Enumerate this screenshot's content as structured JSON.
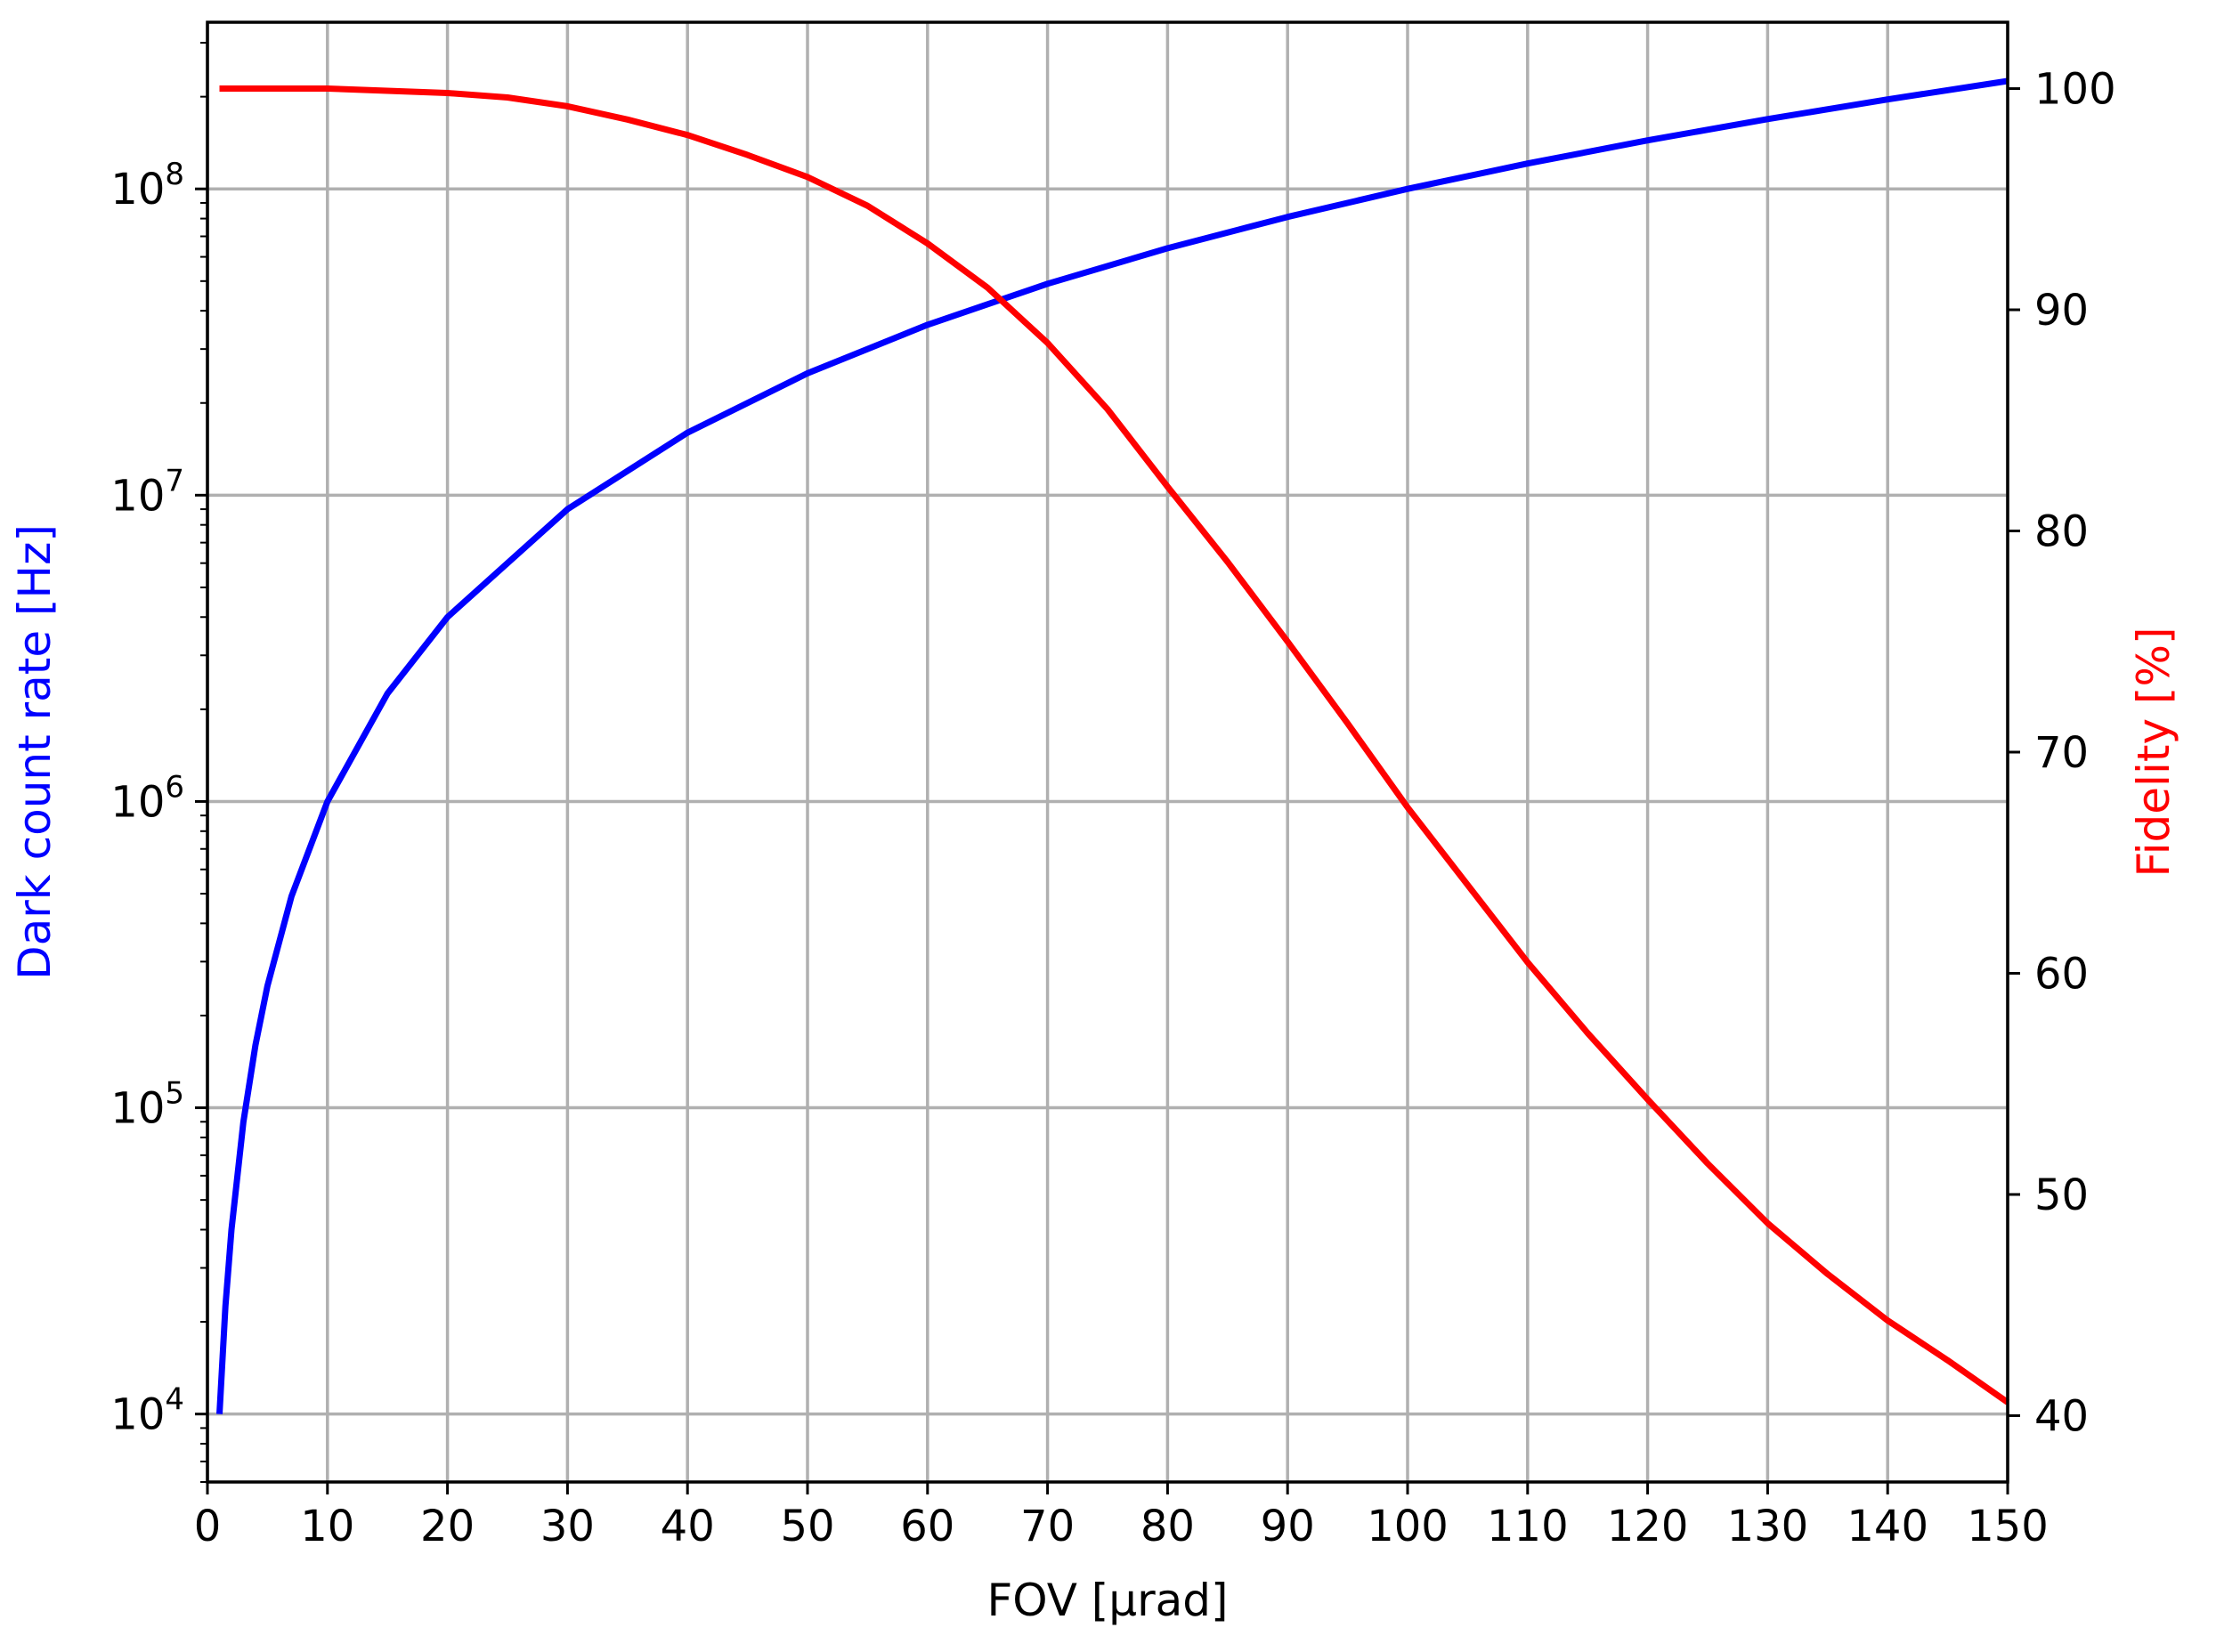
{
  "chart_data": {
    "type": "line",
    "xlabel": "FOV [μrad]",
    "ylabel_left": "Dark count rate [Hz]",
    "ylabel_right": "Fidelity [%]",
    "xlim": [
      0,
      150
    ],
    "ylim_left": [
      6000,
      350000000
    ],
    "yscale_left": "log",
    "ylim_right": [
      37,
      103
    ],
    "grid": true,
    "colors": {
      "left": "#0000ff",
      "right": "#ff0000",
      "grid": "#b0b0b0"
    },
    "x_ticks": [
      "0",
      "10",
      "20",
      "30",
      "40",
      "50",
      "60",
      "70",
      "80",
      "90",
      "100",
      "110",
      "120",
      "130",
      "140",
      "150"
    ],
    "y_left_ticks": [
      {
        "value": 10000,
        "base": "10",
        "exp": "4"
      },
      {
        "value": 100000,
        "base": "10",
        "exp": "5"
      },
      {
        "value": 1000000,
        "base": "10",
        "exp": "6"
      },
      {
        "value": 10000000,
        "base": "10",
        "exp": "7"
      },
      {
        "value": 100000000,
        "base": "10",
        "exp": "8"
      }
    ],
    "y_right_ticks": [
      "40",
      "50",
      "60",
      "70",
      "80",
      "90",
      "100"
    ],
    "series": [
      {
        "axis": "left",
        "x": [
          1,
          1.5,
          2,
          3,
          4,
          5,
          7,
          10,
          15,
          20,
          30,
          40,
          50,
          60,
          70,
          80,
          90,
          100,
          110,
          120,
          130,
          140,
          150
        ],
        "y": [
          10000,
          22500,
          40000,
          90000,
          160000,
          250000,
          490000,
          1000000,
          2250000,
          4000000,
          9000000,
          16000000,
          25000000,
          36000000,
          49000000,
          64000000,
          81000000,
          100000000,
          121000000,
          144000000,
          169000000,
          196000000,
          225000000
        ]
      },
      {
        "axis": "right",
        "x": [
          1,
          10,
          20,
          25,
          30,
          35,
          40,
          45,
          50,
          55,
          60,
          65,
          70,
          75,
          80,
          85,
          90,
          95,
          100,
          105,
          110,
          115,
          120,
          125,
          130,
          135,
          140,
          145,
          150
        ],
        "y": [
          100,
          100,
          99.8,
          99.6,
          99.2,
          98.6,
          97.9,
          97.0,
          96.0,
          94.7,
          93.0,
          91.0,
          88.5,
          85.5,
          82.0,
          78.6,
          75.0,
          71.3,
          67.5,
          64.0,
          60.5,
          57.3,
          54.3,
          51.4,
          48.7,
          46.4,
          44.3,
          42.5,
          40.6
        ]
      }
    ]
  }
}
